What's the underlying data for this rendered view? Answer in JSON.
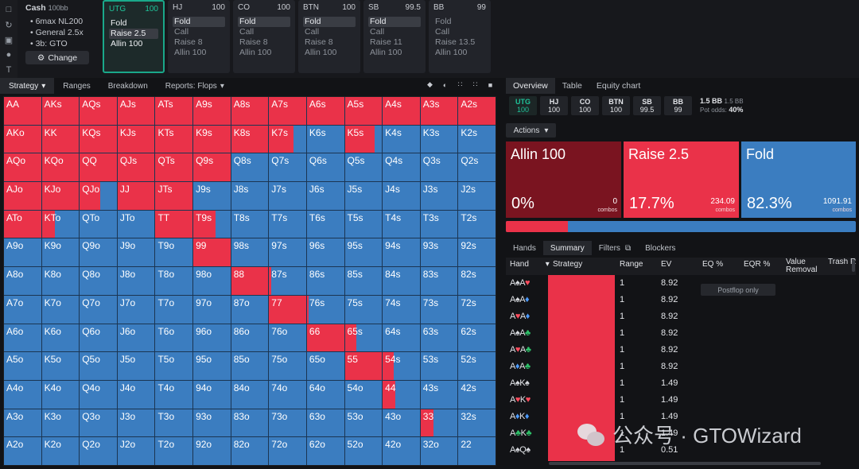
{
  "settings": {
    "game": "Cash",
    "stack": "100bb",
    "items": [
      "6max NL200",
      "General 2.5x",
      "3b: GTO"
    ],
    "change_label": "Change"
  },
  "positions": [
    {
      "name": "UTG",
      "stack": "100",
      "actions": [
        "Fold",
        "Raise 2.5",
        "Allin 100"
      ],
      "selected": 1,
      "active": true
    },
    {
      "name": "HJ",
      "stack": "100",
      "actions": [
        "Fold",
        "Call",
        "Raise 8",
        "Allin 100"
      ],
      "selected": 0
    },
    {
      "name": "CO",
      "stack": "100",
      "actions": [
        "Fold",
        "Call",
        "Raise 8",
        "Allin 100"
      ],
      "selected": 0
    },
    {
      "name": "BTN",
      "stack": "100",
      "actions": [
        "Fold",
        "Call",
        "Raise 8",
        "Allin 100"
      ],
      "selected": 0
    },
    {
      "name": "SB",
      "stack": "99.5",
      "actions": [
        "Fold",
        "Call",
        "Raise 11",
        "Allin 100"
      ],
      "selected": 0
    },
    {
      "name": "BB",
      "stack": "99",
      "actions": [
        "Fold",
        "Call",
        "Raise 13.5",
        "Allin 100"
      ],
      "selected": -1
    }
  ],
  "left_tabs": [
    "Strategy",
    "Ranges",
    "Breakdown",
    "Reports: Flops"
  ],
  "grid": {
    "colors": {
      "raise": "#ea3249",
      "fold": "#3b7dc0"
    },
    "cells": [
      [
        "AA",
        "AKs",
        "AQs",
        "AJs",
        "ATs",
        "A9s",
        "A8s",
        "A7s",
        "A6s",
        "A5s",
        "A4s",
        "A3s",
        "A2s"
      ],
      [
        "AKo",
        "KK",
        "KQs",
        "KJs",
        "KTs",
        "K9s",
        "K8s",
        "K7s",
        "K6s",
        "K5s",
        "K4s",
        "K3s",
        "K2s"
      ],
      [
        "AQo",
        "KQo",
        "QQ",
        "QJs",
        "QTs",
        "Q9s",
        "Q8s",
        "Q7s",
        "Q6s",
        "Q5s",
        "Q4s",
        "Q3s",
        "Q2s"
      ],
      [
        "AJo",
        "KJo",
        "QJo",
        "JJ",
        "JTs",
        "J9s",
        "J8s",
        "J7s",
        "J6s",
        "J5s",
        "J4s",
        "J3s",
        "J2s"
      ],
      [
        "ATo",
        "KTo",
        "QTo",
        "JTo",
        "TT",
        "T9s",
        "T8s",
        "T7s",
        "T6s",
        "T5s",
        "T4s",
        "T3s",
        "T2s"
      ],
      [
        "A9o",
        "K9o",
        "Q9o",
        "J9o",
        "T9o",
        "99",
        "98s",
        "97s",
        "96s",
        "95s",
        "94s",
        "93s",
        "92s"
      ],
      [
        "A8o",
        "K8o",
        "Q8o",
        "J8o",
        "T8o",
        "98o",
        "88",
        "87s",
        "86s",
        "85s",
        "84s",
        "83s",
        "82s"
      ],
      [
        "A7o",
        "K7o",
        "Q7o",
        "J7o",
        "T7o",
        "97o",
        "87o",
        "77",
        "76s",
        "75s",
        "74s",
        "73s",
        "72s"
      ],
      [
        "A6o",
        "K6o",
        "Q6o",
        "J6o",
        "T6o",
        "96o",
        "86o",
        "76o",
        "66",
        "65s",
        "64s",
        "63s",
        "62s"
      ],
      [
        "A5o",
        "K5o",
        "Q5o",
        "J5o",
        "T5o",
        "95o",
        "85o",
        "75o",
        "65o",
        "55",
        "54s",
        "53s",
        "52s"
      ],
      [
        "A4o",
        "K4o",
        "Q4o",
        "J4o",
        "T4o",
        "94o",
        "84o",
        "74o",
        "64o",
        "54o",
        "44",
        "43s",
        "42s"
      ],
      [
        "A3o",
        "K3o",
        "Q3o",
        "J3o",
        "T3o",
        "93o",
        "83o",
        "73o",
        "63o",
        "53o",
        "43o",
        "33",
        "32s"
      ],
      [
        "A2o",
        "K2o",
        "Q2o",
        "J2o",
        "T2o",
        "92o",
        "82o",
        "72o",
        "62o",
        "52o",
        "42o",
        "32o",
        "22"
      ]
    ],
    "raise_freq": [
      [
        1,
        1,
        1,
        1,
        1,
        1,
        1,
        1,
        1,
        1,
        1,
        1,
        1
      ],
      [
        1,
        1,
        1,
        1,
        1,
        1,
        1,
        0.65,
        0,
        0.8,
        0,
        0,
        0
      ],
      [
        1,
        1,
        1,
        1,
        1,
        1,
        0,
        0,
        0,
        0,
        0,
        0,
        0
      ],
      [
        1,
        1,
        0.55,
        1,
        1,
        0,
        0,
        0,
        0,
        0,
        0,
        0,
        0
      ],
      [
        1,
        0.35,
        0,
        0,
        1,
        0.6,
        0,
        0,
        0,
        0,
        0,
        0,
        0
      ],
      [
        0,
        0,
        0,
        0,
        0,
        1,
        0,
        0,
        0,
        0,
        0,
        0,
        0
      ],
      [
        0,
        0,
        0,
        0,
        0,
        0,
        1,
        0.05,
        0,
        0,
        0,
        0,
        0
      ],
      [
        0,
        0,
        0,
        0,
        0,
        0,
        0,
        1,
        0.05,
        0,
        0,
        0,
        0
      ],
      [
        0,
        0,
        0,
        0,
        0,
        0,
        0,
        0,
        1,
        0.3,
        0,
        0,
        0
      ],
      [
        0,
        0,
        0,
        0,
        0,
        0,
        0,
        0,
        0,
        1,
        0.3,
        0,
        0
      ],
      [
        0,
        0,
        0,
        0,
        0,
        0,
        0,
        0,
        0,
        0,
        0.35,
        0,
        0
      ],
      [
        0,
        0,
        0,
        0,
        0,
        0,
        0,
        0,
        0,
        0,
        0,
        0.35,
        0
      ],
      [
        0,
        0,
        0,
        0,
        0,
        0,
        0,
        0,
        0,
        0,
        0,
        0,
        0
      ]
    ]
  },
  "right_tabs": [
    "Overview",
    "Table",
    "Equity chart"
  ],
  "pos_buttons": [
    {
      "name": "UTG",
      "stack": "100"
    },
    {
      "name": "HJ",
      "stack": "100"
    },
    {
      "name": "CO",
      "stack": "100"
    },
    {
      "name": "BTN",
      "stack": "100"
    },
    {
      "name": "SB",
      "stack": "99.5"
    },
    {
      "name": "BB",
      "stack": "99"
    }
  ],
  "pot": {
    "a": "1.5 BB",
    "b": "1.5 BB",
    "odds_label": "Pot odds:",
    "odds": "40%"
  },
  "actions_label": "Actions",
  "action_boxes": [
    {
      "name": "Allin 100",
      "pct": "0%",
      "combos": "0",
      "combos_label": "combos",
      "color": "#7a1420"
    },
    {
      "name": "Raise 2.5",
      "pct": "17.7%",
      "combos": "234.09",
      "combos_label": "combos",
      "color": "#ea3249"
    },
    {
      "name": "Fold",
      "pct": "82.3%",
      "combos": "1091.91",
      "combos_label": "combos",
      "color": "#3b7dc0"
    }
  ],
  "bottom_tabs": [
    "Hands",
    "Summary",
    "Filters",
    "Blockers"
  ],
  "table": {
    "headers": {
      "hand": "Hand",
      "strategy": "Strategy",
      "range": "Range",
      "ev": "EV",
      "eq": "EQ %",
      "eqr": "EQR %",
      "value_removal": "Value Removal",
      "trash_removal": "Trash Remov"
    },
    "postflop_label": "Postflop only",
    "rows": [
      {
        "c1": "A",
        "s1": "♠",
        "k1": "#d7d9de",
        "c2": "A",
        "s2": "♥",
        "k2": "#ff4d5e",
        "range": "1",
        "ev": "8.92"
      },
      {
        "c1": "A",
        "s1": "♠",
        "k1": "#d7d9de",
        "c2": "A",
        "s2": "♦",
        "k2": "#4d9bff",
        "range": "1",
        "ev": "8.92"
      },
      {
        "c1": "A",
        "s1": "♥",
        "k1": "#ff4d5e",
        "c2": "A",
        "s2": "♦",
        "k2": "#4d9bff",
        "range": "1",
        "ev": "8.92"
      },
      {
        "c1": "A",
        "s1": "♠",
        "k1": "#d7d9de",
        "c2": "A",
        "s2": "♣",
        "k2": "#2fc36a",
        "range": "1",
        "ev": "8.92"
      },
      {
        "c1": "A",
        "s1": "♥",
        "k1": "#ff4d5e",
        "c2": "A",
        "s2": "♣",
        "k2": "#2fc36a",
        "range": "1",
        "ev": "8.92"
      },
      {
        "c1": "A",
        "s1": "♦",
        "k1": "#4d9bff",
        "c2": "A",
        "s2": "♣",
        "k2": "#2fc36a",
        "range": "1",
        "ev": "8.92"
      },
      {
        "c1": "A",
        "s1": "♠",
        "k1": "#d7d9de",
        "c2": "K",
        "s2": "♠",
        "k2": "#d7d9de",
        "range": "1",
        "ev": "1.49"
      },
      {
        "c1": "A",
        "s1": "♥",
        "k1": "#ff4d5e",
        "c2": "K",
        "s2": "♥",
        "k2": "#ff4d5e",
        "range": "1",
        "ev": "1.49"
      },
      {
        "c1": "A",
        "s1": "♦",
        "k1": "#4d9bff",
        "c2": "K",
        "s2": "♦",
        "k2": "#4d9bff",
        "range": "1",
        "ev": "1.49"
      },
      {
        "c1": "A",
        "s1": "♣",
        "k1": "#2fc36a",
        "c2": "K",
        "s2": "♣",
        "k2": "#2fc36a",
        "range": "1",
        "ev": "1.49"
      },
      {
        "c1": "A",
        "s1": "♠",
        "k1": "#d7d9de",
        "c2": "Q",
        "s2": "♠",
        "k2": "#d7d9de",
        "range": "1",
        "ev": "0.51"
      }
    ]
  },
  "watermark": {
    "text": "公众号 · GTOWizard"
  }
}
